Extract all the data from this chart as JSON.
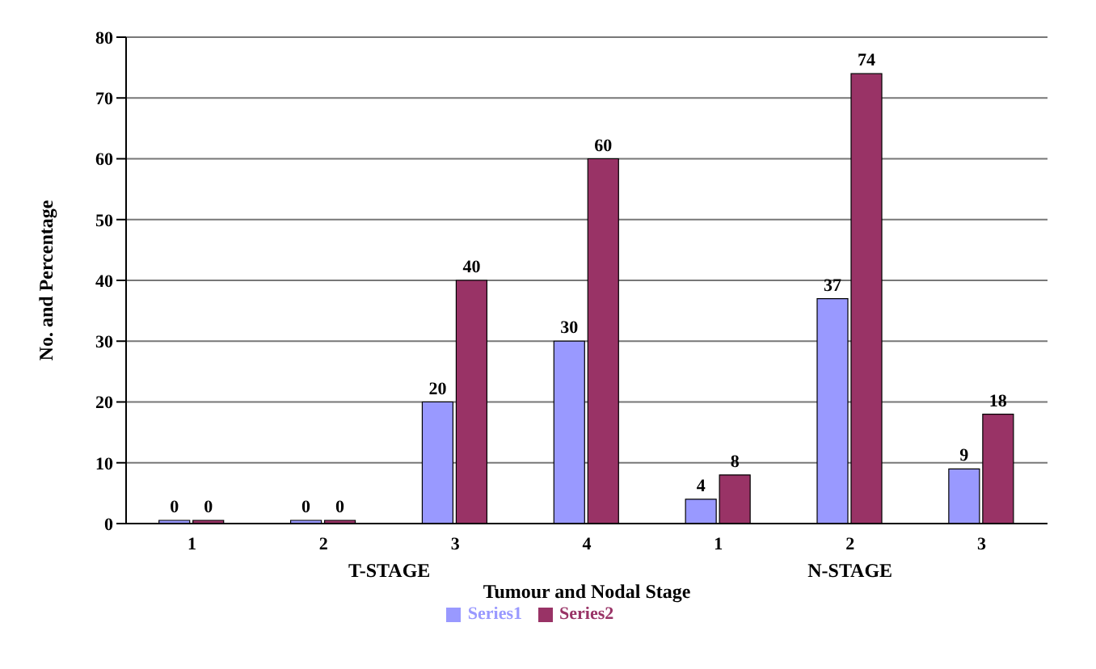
{
  "chart_data": {
    "type": "bar",
    "categories": [
      "1",
      "2",
      "3",
      "4",
      "1",
      "2",
      "3"
    ],
    "series": [
      {
        "name": "Series1",
        "color": "#9999ff",
        "values": [
          0,
          0,
          20,
          30,
          4,
          37,
          9
        ]
      },
      {
        "name": "Series2",
        "color": "#993366",
        "values": [
          0,
          0,
          40,
          60,
          8,
          74,
          18
        ]
      }
    ],
    "xlabel": "Tumour and Nodal Stage",
    "ylabel": "No. and Percentage",
    "annotations": [
      "T-STAGE",
      "N-STAGE"
    ],
    "ylim": [
      0,
      80
    ],
    "yticks": [
      0,
      10,
      20,
      30,
      40,
      50,
      60,
      70,
      80
    ],
    "grid": "y",
    "legend": "bottom",
    "data_labels": true
  }
}
